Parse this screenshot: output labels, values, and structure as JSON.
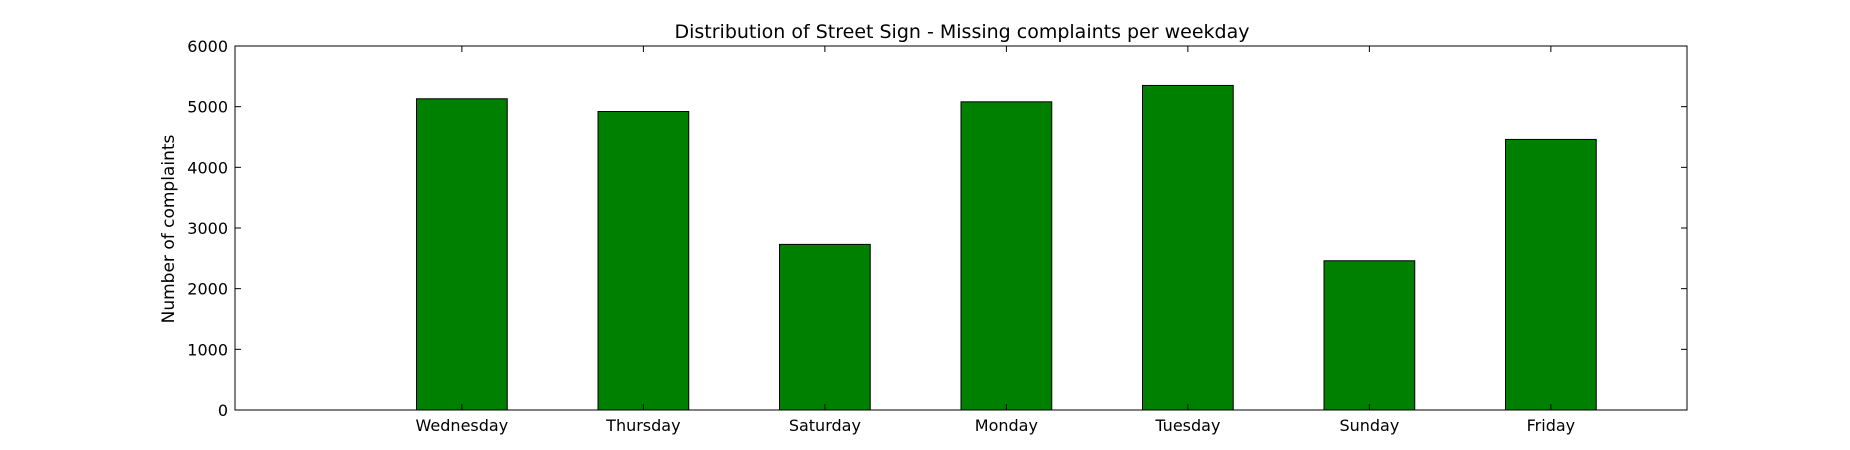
{
  "chart_data": {
    "type": "bar",
    "title": "Distribution of  Street Sign - Missing complaints per weekday",
    "xlabel": "",
    "ylabel": "Number of complaints",
    "categories": [
      "Wednesday",
      "Thursday",
      "Saturday",
      "Monday",
      "Tuesday",
      "Sunday",
      "Friday"
    ],
    "values": [
      5130,
      4920,
      2730,
      5080,
      5350,
      2460,
      4460
    ],
    "ylim": [
      0,
      6000
    ],
    "yticks": [
      0,
      1000,
      2000,
      3000,
      4000,
      5000,
      6000
    ],
    "xlim": [
      -1.25,
      6.75
    ],
    "bar_color": "#008000",
    "bar_edge_color": "#000000",
    "grid": false,
    "legend": "none"
  }
}
